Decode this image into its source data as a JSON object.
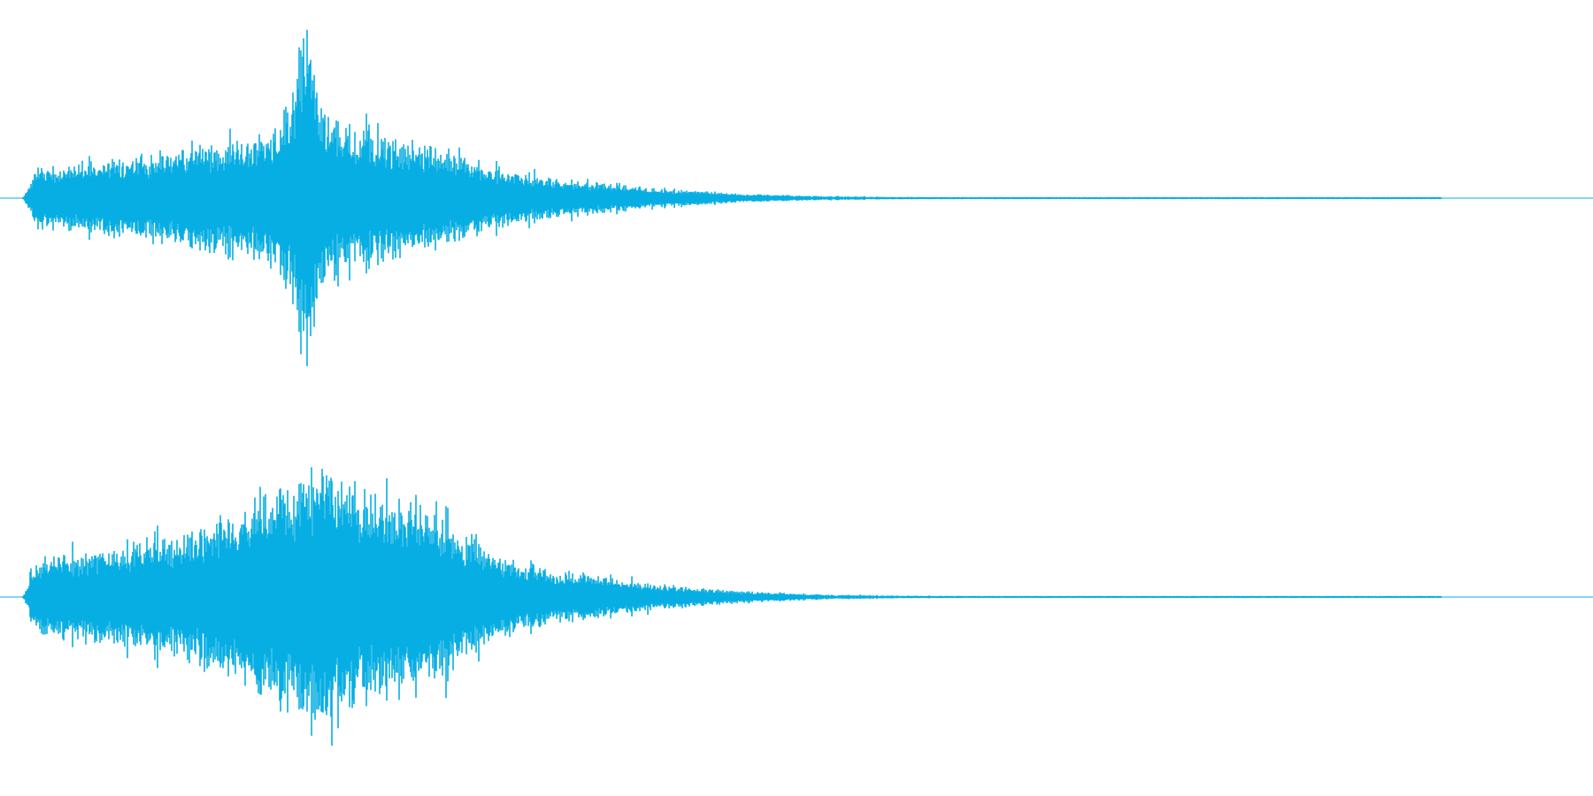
{
  "chart_data": {
    "type": "area",
    "color": "#06aee3",
    "channels": [
      {
        "channel": "left",
        "envelope": [
          {
            "t": 0.0,
            "amp": 0.0
          },
          {
            "t": 0.01,
            "amp": 0.15
          },
          {
            "t": 0.03,
            "amp": 0.17
          },
          {
            "t": 0.06,
            "amp": 0.2
          },
          {
            "t": 0.09,
            "amp": 0.22
          },
          {
            "t": 0.12,
            "amp": 0.25
          },
          {
            "t": 0.15,
            "amp": 0.3
          },
          {
            "t": 0.175,
            "amp": 0.35
          },
          {
            "t": 0.19,
            "amp": 0.5
          },
          {
            "t": 0.2,
            "amp": 0.98
          },
          {
            "t": 0.21,
            "amp": 0.45
          },
          {
            "t": 0.23,
            "amp": 0.36
          },
          {
            "t": 0.26,
            "amp": 0.3
          },
          {
            "t": 0.29,
            "amp": 0.27
          },
          {
            "t": 0.31,
            "amp": 0.22
          },
          {
            "t": 0.34,
            "amp": 0.14
          },
          {
            "t": 0.38,
            "amp": 0.1
          },
          {
            "t": 0.42,
            "amp": 0.07
          },
          {
            "t": 0.46,
            "amp": 0.045
          },
          {
            "t": 0.5,
            "amp": 0.025
          },
          {
            "t": 0.55,
            "amp": 0.012
          },
          {
            "t": 0.6,
            "amp": 0.007
          },
          {
            "t": 0.7,
            "amp": 0.004
          },
          {
            "t": 1.0,
            "amp": 0.004
          }
        ]
      },
      {
        "channel": "right",
        "envelope": [
          {
            "t": 0.0,
            "amp": 0.0
          },
          {
            "t": 0.01,
            "amp": 0.2
          },
          {
            "t": 0.03,
            "amp": 0.21
          },
          {
            "t": 0.06,
            "amp": 0.25
          },
          {
            "t": 0.09,
            "amp": 0.28
          },
          {
            "t": 0.12,
            "amp": 0.33
          },
          {
            "t": 0.15,
            "amp": 0.42
          },
          {
            "t": 0.18,
            "amp": 0.55
          },
          {
            "t": 0.21,
            "amp": 0.68
          },
          {
            "t": 0.24,
            "amp": 0.55
          },
          {
            "t": 0.27,
            "amp": 0.46
          },
          {
            "t": 0.3,
            "amp": 0.4
          },
          {
            "t": 0.33,
            "amp": 0.23
          },
          {
            "t": 0.36,
            "amp": 0.16
          },
          {
            "t": 0.4,
            "amp": 0.11
          },
          {
            "t": 0.44,
            "amp": 0.07
          },
          {
            "t": 0.48,
            "amp": 0.045
          },
          {
            "t": 0.52,
            "amp": 0.025
          },
          {
            "t": 0.57,
            "amp": 0.012
          },
          {
            "t": 0.62,
            "amp": 0.007
          },
          {
            "t": 0.7,
            "amp": 0.004
          },
          {
            "t": 1.0,
            "amp": 0.004
          }
        ]
      }
    ],
    "grid": false,
    "legend": "none"
  }
}
